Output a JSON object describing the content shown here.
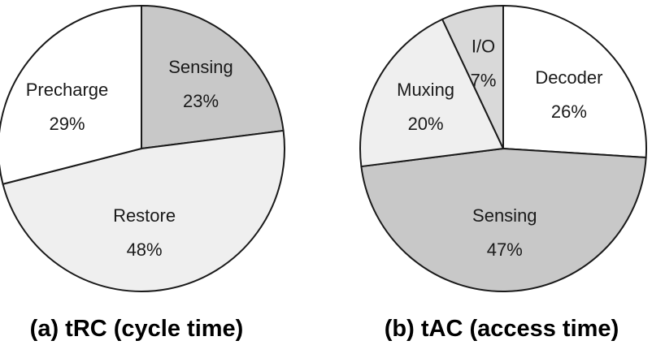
{
  "chart_data": [
    {
      "type": "pie",
      "caption": "(a) tRC (cycle time)",
      "slices": [
        {
          "label": "Sensing",
          "value_text": "23%",
          "value": 23,
          "color": "#c8c8c8"
        },
        {
          "label": "Restore",
          "value_text": "48%",
          "value": 48,
          "color": "#efefef"
        },
        {
          "label": "Precharge",
          "value_text": "29%",
          "value": 29,
          "color": "#ffffff"
        }
      ]
    },
    {
      "type": "pie",
      "caption": "(b) tAC (access time)",
      "slices": [
        {
          "label": "Decoder",
          "value_text": "26%",
          "value": 26,
          "color": "#ffffff"
        },
        {
          "label": "Sensing",
          "value_text": "47%",
          "value": 47,
          "color": "#c8c8c8"
        },
        {
          "label": "Muxing",
          "value_text": "20%",
          "value": 20,
          "color": "#efefef"
        },
        {
          "label": "I/O",
          "value_text": "7%",
          "value": 7,
          "color": "#d9d9d9"
        }
      ]
    }
  ]
}
